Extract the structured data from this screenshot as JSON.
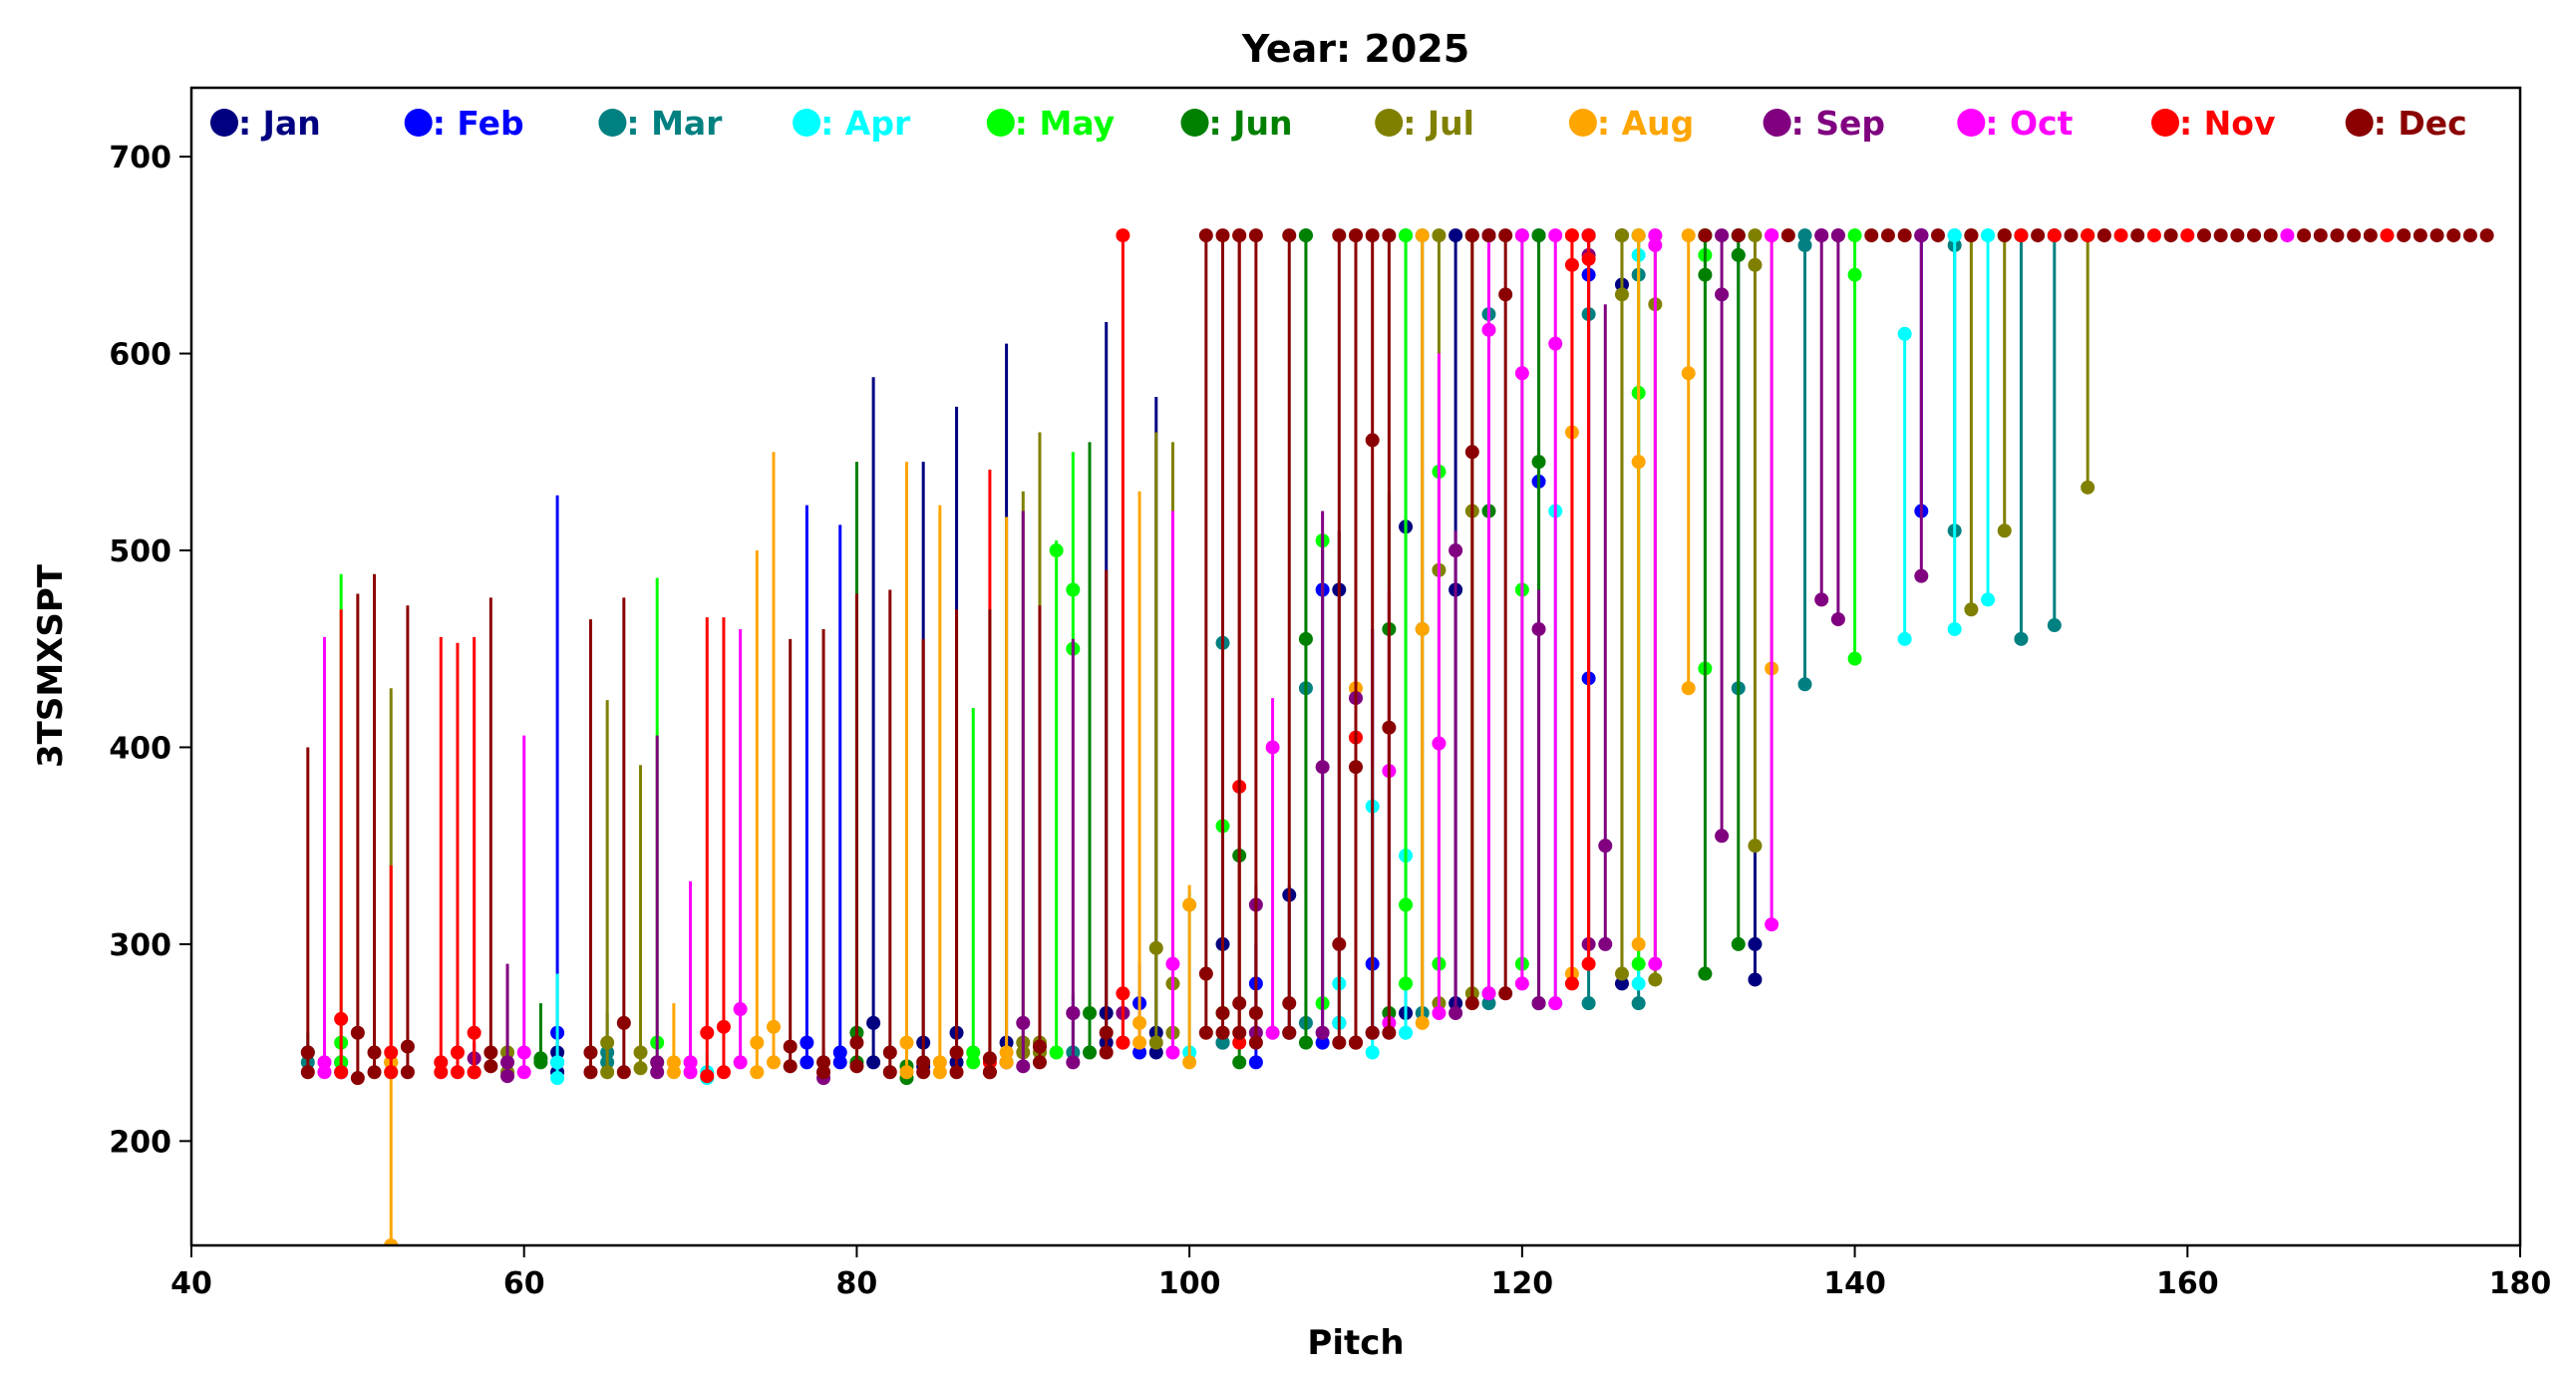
{
  "chart_data": {
    "type": "scatter",
    "title": "Year: 2025",
    "xlabel": "Pitch",
    "ylabel": "3TSMXSPT",
    "xlim": [
      40,
      180
    ],
    "ylim": [
      147,
      735
    ],
    "xticks": [
      40,
      60,
      80,
      100,
      120,
      140,
      160,
      180
    ],
    "yticks": [
      200,
      300,
      400,
      500,
      600,
      700
    ],
    "grid": false,
    "legend_placement": "top (single row inside axes)",
    "series_format": "lines: [pitch, min, max, typical]; top_dots: pitch values with a point at 660",
    "series": [
      {
        "name": ": Jan",
        "color": "#000080",
        "lines": [
          [
            62,
            235,
            255,
            245
          ],
          [
            81,
            240,
            588,
            260
          ],
          [
            84,
            238,
            545,
            250
          ],
          [
            86,
            240,
            573,
            255
          ],
          [
            89,
            240,
            605,
            250
          ],
          [
            95,
            250,
            616,
            265
          ],
          [
            98,
            245,
            578,
            255
          ],
          [
            102,
            250,
            310,
            300
          ],
          [
            106,
            255,
            330,
            325
          ],
          [
            109,
            260,
            510,
            480
          ],
          [
            113,
            265,
            660,
            512
          ],
          [
            116,
            270,
            660,
            480
          ],
          [
            126,
            280,
            660,
            635
          ],
          [
            134,
            282,
            350,
            300
          ]
        ],
        "top_dots": []
      },
      {
        "name": ": Feb",
        "color": "#0000ff",
        "lines": [
          [
            49,
            235,
            250,
            240
          ],
          [
            62,
            240,
            528,
            255
          ],
          [
            77,
            240,
            523,
            250
          ],
          [
            79,
            240,
            513,
            245
          ],
          [
            97,
            245,
            290,
            270
          ],
          [
            104,
            240,
            300,
            280
          ],
          [
            108,
            250,
            500,
            480
          ],
          [
            111,
            255,
            460,
            290
          ],
          [
            121,
            270,
            660,
            535
          ],
          [
            124,
            435,
            660,
            640
          ],
          [
            144,
            520,
            660,
            660
          ]
        ],
        "top_dots": []
      },
      {
        "name": ": Mar",
        "color": "#008080",
        "lines": [
          [
            47,
            240,
            255,
            245
          ],
          [
            65,
            240,
            265,
            245
          ],
          [
            93,
            245,
            275,
            265
          ],
          [
            102,
            250,
            455,
            453
          ],
          [
            107,
            260,
            660,
            430
          ],
          [
            114,
            265,
            660,
            460
          ],
          [
            118,
            270,
            660,
            620
          ],
          [
            124,
            270,
            660,
            620
          ],
          [
            127,
            270,
            660,
            640
          ],
          [
            133,
            430,
            660,
            650
          ],
          [
            137,
            432,
            660,
            655
          ],
          [
            146,
            510,
            660,
            655
          ],
          [
            150,
            455,
            660,
            660
          ],
          [
            152,
            462,
            660,
            660
          ]
        ],
        "top_dots": []
      },
      {
        "name": ": Apr",
        "color": "#00ffff",
        "lines": [
          [
            62,
            232,
            285,
            240
          ],
          [
            71,
            232,
            245,
            235
          ],
          [
            100,
            245,
            327,
            320
          ],
          [
            109,
            260,
            280,
            280
          ],
          [
            111,
            245,
            390,
            370
          ],
          [
            113,
            255,
            660,
            345
          ],
          [
            122,
            270,
            520,
            520
          ],
          [
            127,
            280,
            660,
            650
          ],
          [
            143,
            455,
            613,
            610
          ],
          [
            146,
            460,
            660,
            660
          ],
          [
            148,
            475,
            660,
            660
          ]
        ],
        "top_dots": []
      },
      {
        "name": ": May",
        "color": "#00ff00",
        "lines": [
          [
            49,
            240,
            488,
            250
          ],
          [
            68,
            240,
            486,
            250
          ],
          [
            87,
            240,
            420,
            245
          ],
          [
            92,
            245,
            505,
            500
          ],
          [
            93,
            450,
            550,
            480
          ],
          [
            102,
            265,
            360,
            360
          ],
          [
            108,
            270,
            505,
            505
          ],
          [
            113,
            280,
            660,
            320
          ],
          [
            115,
            290,
            540,
            540
          ],
          [
            120,
            290,
            660,
            480
          ],
          [
            127,
            290,
            660,
            580
          ],
          [
            131,
            440,
            660,
            650
          ],
          [
            140,
            445,
            660,
            640
          ]
        ],
        "top_dots": []
      },
      {
        "name": ": Jun",
        "color": "#008000",
        "lines": [
          [
            61,
            240,
            270,
            242
          ],
          [
            80,
            240,
            545,
            255
          ],
          [
            83,
            232,
            540,
            238
          ],
          [
            94,
            245,
            555,
            265
          ],
          [
            103,
            240,
            345,
            345
          ],
          [
            107,
            250,
            660,
            455
          ],
          [
            112,
            265,
            530,
            460
          ],
          [
            118,
            275,
            660,
            520
          ],
          [
            121,
            270,
            660,
            545
          ],
          [
            131,
            285,
            660,
            640
          ],
          [
            133,
            300,
            660,
            650
          ]
        ],
        "top_dots": []
      },
      {
        "name": ": Jul",
        "color": "#808000",
        "lines": [
          [
            52,
            235,
            430,
            240
          ],
          [
            59,
            235,
            272,
            245
          ],
          [
            65,
            235,
            424,
            250
          ],
          [
            67,
            237,
            391,
            245
          ],
          [
            90,
            245,
            530,
            250
          ],
          [
            91,
            245,
            560,
            250
          ],
          [
            98,
            250,
            560,
            298
          ],
          [
            99,
            255,
            555,
            280
          ],
          [
            115,
            270,
            660,
            490
          ],
          [
            117,
            275,
            660,
            520
          ],
          [
            126,
            285,
            660,
            630
          ],
          [
            128,
            282,
            660,
            625
          ],
          [
            134,
            350,
            660,
            645
          ],
          [
            147,
            470,
            660,
            660
          ],
          [
            149,
            510,
            660,
            660
          ],
          [
            154,
            532,
            660,
            660
          ]
        ],
        "top_dots": []
      },
      {
        "name": ": Aug",
        "color": "#ffa500",
        "lines": [
          [
            52,
            147,
            250,
            240
          ],
          [
            69,
            235,
            270,
            240
          ],
          [
            74,
            235,
            500,
            250
          ],
          [
            75,
            240,
            550,
            258
          ],
          [
            83,
            235,
            545,
            250
          ],
          [
            85,
            235,
            523,
            240
          ],
          [
            89,
            240,
            517,
            245
          ],
          [
            97,
            250,
            530,
            260
          ],
          [
            100,
            240,
            330,
            320
          ],
          [
            110,
            250,
            510,
            430
          ],
          [
            114,
            260,
            660,
            460
          ],
          [
            123,
            285,
            660,
            560
          ],
          [
            127,
            300,
            660,
            545
          ],
          [
            130,
            430,
            660,
            590
          ],
          [
            135,
            440,
            660,
            660
          ]
        ],
        "top_dots": []
      },
      {
        "name": ": Sep",
        "color": "#800080",
        "lines": [
          [
            57,
            235,
            250,
            242
          ],
          [
            59,
            233,
            290,
            240
          ],
          [
            68,
            235,
            406,
            240
          ],
          [
            78,
            232,
            248,
            235
          ],
          [
            90,
            238,
            520,
            260
          ],
          [
            93,
            240,
            455,
            265
          ],
          [
            96,
            250,
            273,
            265
          ],
          [
            104,
            255,
            330,
            320
          ],
          [
            108,
            255,
            520,
            390
          ],
          [
            110,
            250,
            505,
            425
          ],
          [
            116,
            265,
            510,
            500
          ],
          [
            121,
            270,
            480,
            460
          ],
          [
            124,
            300,
            660,
            650
          ],
          [
            125,
            300,
            625,
            350
          ],
          [
            132,
            355,
            660,
            630
          ],
          [
            138,
            475,
            660,
            660
          ],
          [
            139,
            465,
            660,
            660
          ],
          [
            144,
            487,
            660,
            660
          ]
        ],
        "top_dots": []
      },
      {
        "name": ": Oct",
        "color": "#ff00ff",
        "lines": [
          [
            48,
            235,
            456,
            240
          ],
          [
            60,
            235,
            406,
            245
          ],
          [
            70,
            235,
            332,
            240
          ],
          [
            73,
            240,
            460,
            267
          ],
          [
            99,
            245,
            520,
            290
          ],
          [
            105,
            255,
            425,
            400
          ],
          [
            112,
            260,
            480,
            388
          ],
          [
            115,
            265,
            600,
            402
          ],
          [
            118,
            275,
            660,
            612
          ],
          [
            120,
            280,
            660,
            590
          ],
          [
            122,
            270,
            660,
            605
          ],
          [
            128,
            290,
            660,
            655
          ],
          [
            135,
            310,
            660,
            660
          ]
        ],
        "top_dots": [
          166
        ]
      },
      {
        "name": ": Nov",
        "color": "#ff0000",
        "lines": [
          [
            49,
            235,
            470,
            262
          ],
          [
            52,
            235,
            340,
            245
          ],
          [
            55,
            235,
            456,
            240
          ],
          [
            56,
            235,
            453,
            245
          ],
          [
            57,
            235,
            456,
            255
          ],
          [
            71,
            233,
            466,
            255
          ],
          [
            72,
            235,
            466,
            258
          ],
          [
            88,
            235,
            541,
            240
          ],
          [
            96,
            250,
            660,
            275
          ],
          [
            103,
            250,
            660,
            380
          ],
          [
            110,
            250,
            660,
            405
          ],
          [
            123,
            280,
            660,
            645
          ],
          [
            124,
            290,
            660,
            648
          ]
        ],
        "top_dots": [
          150,
          152,
          154,
          156,
          158,
          160,
          172
        ]
      },
      {
        "name": ": Dec",
        "color": "#8b0000",
        "lines": [
          [
            47,
            235,
            400,
            245
          ],
          [
            50,
            232,
            478,
            255
          ],
          [
            51,
            235,
            488,
            245
          ],
          [
            53,
            235,
            472,
            248
          ],
          [
            58,
            238,
            476,
            245
          ],
          [
            64,
            235,
            465,
            245
          ],
          [
            66,
            235,
            476,
            260
          ],
          [
            76,
            238,
            455,
            248
          ],
          [
            78,
            235,
            460,
            240
          ],
          [
            80,
            238,
            478,
            250
          ],
          [
            82,
            235,
            480,
            245
          ],
          [
            84,
            235,
            455,
            240
          ],
          [
            86,
            235,
            470,
            245
          ],
          [
            88,
            235,
            470,
            242
          ],
          [
            91,
            240,
            472,
            248
          ],
          [
            95,
            245,
            490,
            255
          ],
          [
            101,
            255,
            660,
            285
          ],
          [
            102,
            255,
            660,
            265
          ],
          [
            103,
            255,
            660,
            270
          ],
          [
            104,
            250,
            660,
            265
          ],
          [
            106,
            255,
            660,
            270
          ],
          [
            109,
            250,
            660,
            300
          ],
          [
            110,
            250,
            660,
            390
          ],
          [
            111,
            255,
            660,
            556
          ],
          [
            112,
            255,
            660,
            410
          ],
          [
            117,
            270,
            660,
            550
          ],
          [
            119,
            275,
            660,
            630
          ]
        ],
        "top_dots": [
          117,
          118,
          131,
          133,
          136,
          141,
          142,
          143,
          145,
          147,
          149,
          151,
          153,
          155,
          157,
          159,
          161,
          162,
          163,
          164,
          165,
          167,
          168,
          169,
          170,
          171,
          173,
          174,
          175,
          176,
          177,
          178
        ]
      }
    ]
  }
}
